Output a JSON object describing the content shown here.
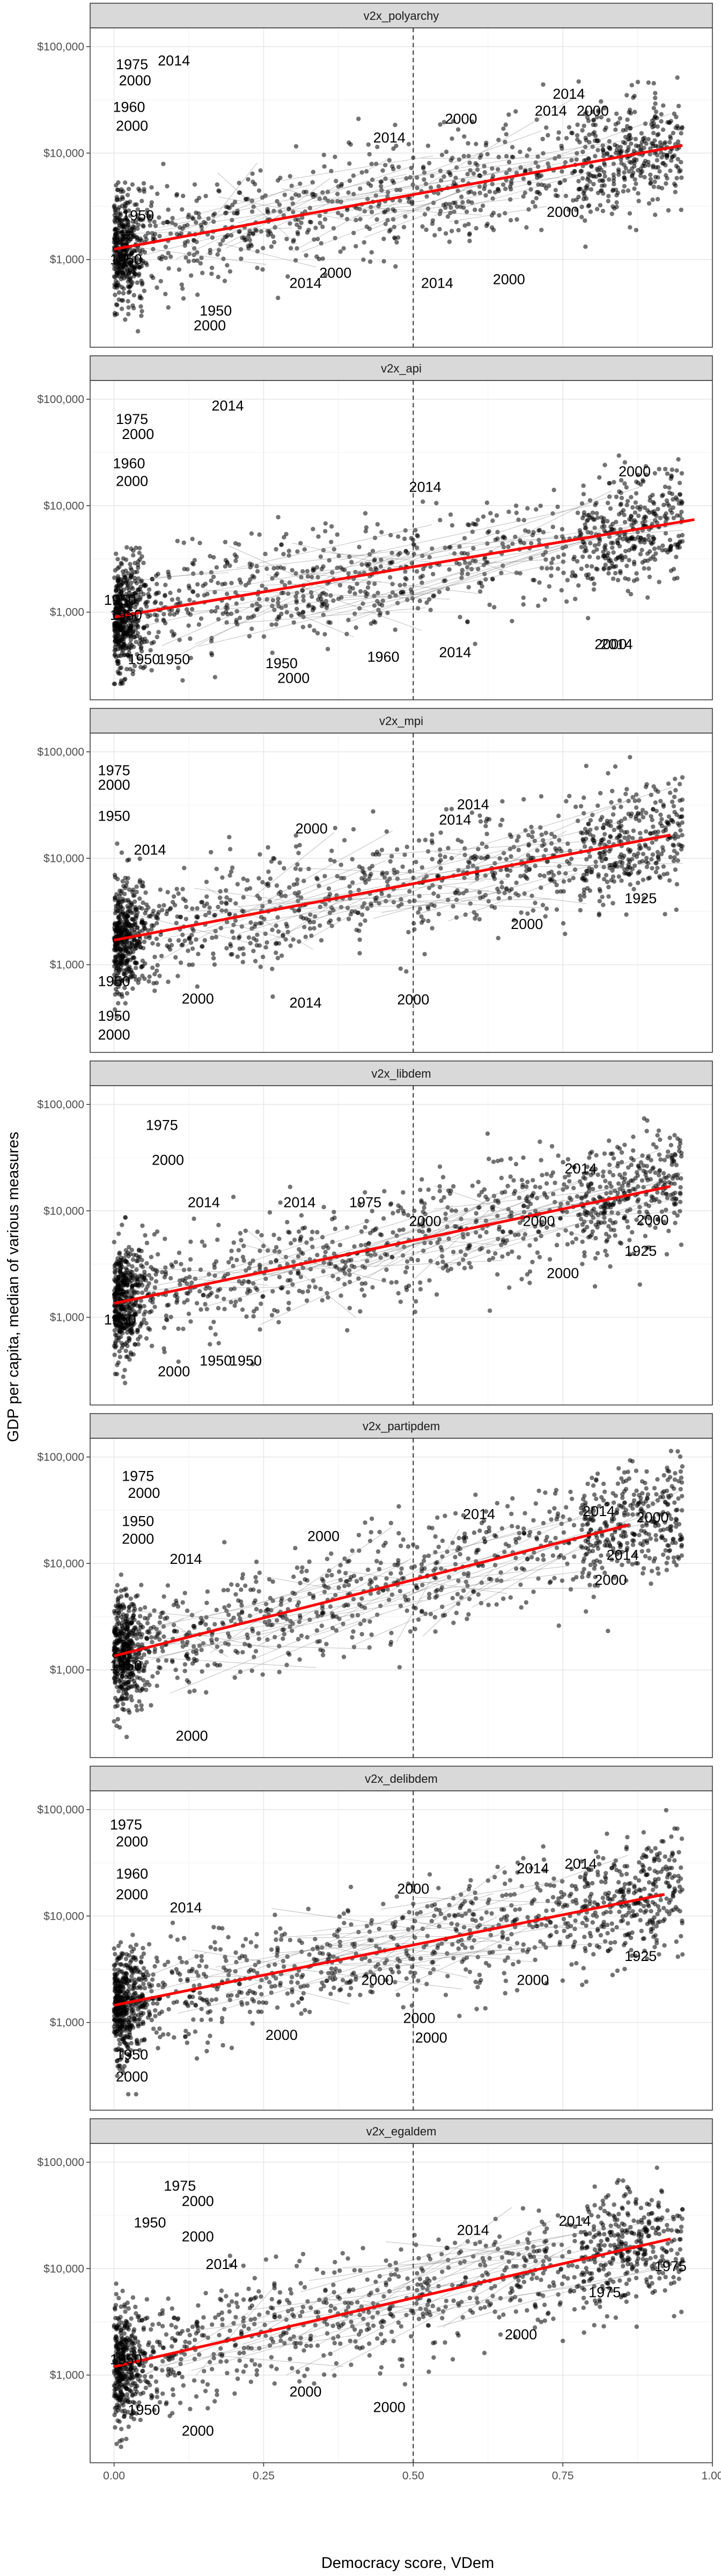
{
  "chart_data": {
    "type": "scatter",
    "xlabel": "Democracy score, VDem",
    "ylabel": "GDP per capita, median of various measures",
    "xlim": [
      -0.04,
      1.0
    ],
    "ylim": [
      150,
      150000
    ],
    "y_scale": "log",
    "x_ticks": [
      0.0,
      0.25,
      0.5,
      0.75,
      1.0
    ],
    "x_tick_labels": [
      "0.00",
      "0.25",
      "0.50",
      "0.75",
      "1.00"
    ],
    "y_ticks": [
      1000,
      10000,
      100000
    ],
    "y_tick_labels": [
      "$1,000",
      "$10,000",
      "$100,000"
    ],
    "vline_x": 0.5,
    "grid": true,
    "point_color": "#000000",
    "fit_color": "#ff0000",
    "panels": [
      {
        "name": "v2x_polyarchy",
        "fit": {
          "x": [
            0.0,
            0.95
          ],
          "y": [
            1250,
            11800
          ]
        },
        "labels": [
          {
            "text": "1975",
            "x": 0.03,
            "y": 68000
          },
          {
            "text": "2014",
            "x": 0.1,
            "y": 74000
          },
          {
            "text": "2000",
            "x": 0.035,
            "y": 48000
          },
          {
            "text": "1960",
            "x": 0.025,
            "y": 27000
          },
          {
            "text": "2000",
            "x": 0.03,
            "y": 18000
          },
          {
            "text": "2000",
            "x": 0.58,
            "y": 21000
          },
          {
            "text": "2014",
            "x": 0.76,
            "y": 36000
          },
          {
            "text": "2014",
            "x": 0.73,
            "y": 25000
          },
          {
            "text": "2000",
            "x": 0.8,
            "y": 25000
          },
          {
            "text": "2014",
            "x": 0.46,
            "y": 14000
          },
          {
            "text": "1950",
            "x": 0.04,
            "y": 2600
          },
          {
            "text": "1950",
            "x": 0.02,
            "y": 1000
          },
          {
            "text": "1950",
            "x": 0.17,
            "y": 330
          },
          {
            "text": "2000",
            "x": 0.16,
            "y": 240
          },
          {
            "text": "2000",
            "x": 0.37,
            "y": 750
          },
          {
            "text": "2014",
            "x": 0.32,
            "y": 600
          },
          {
            "text": "2014",
            "x": 0.54,
            "y": 600
          },
          {
            "text": "2000",
            "x": 0.66,
            "y": 650
          },
          {
            "text": "2000",
            "x": 0.75,
            "y": 2800
          }
        ]
      },
      {
        "name": "v2x_api",
        "fit": {
          "x": [
            0.0,
            0.97
          ],
          "y": [
            900,
            7400
          ]
        },
        "labels": [
          {
            "text": "1975",
            "x": 0.03,
            "y": 65000
          },
          {
            "text": "2014",
            "x": 0.19,
            "y": 87000
          },
          {
            "text": "2000",
            "x": 0.04,
            "y": 47000
          },
          {
            "text": "1960",
            "x": 0.025,
            "y": 25000
          },
          {
            "text": "2000",
            "x": 0.03,
            "y": 17000
          },
          {
            "text": "2000",
            "x": 0.87,
            "y": 21000
          },
          {
            "text": "2014",
            "x": 0.52,
            "y": 15000
          },
          {
            "text": "1950",
            "x": 0.01,
            "y": 1300
          },
          {
            "text": "1950",
            "x": 0.02,
            "y": 940
          },
          {
            "text": "1950",
            "x": 0.05,
            "y": 360
          },
          {
            "text": "1950",
            "x": 0.1,
            "y": 360
          },
          {
            "text": "1950",
            "x": 0.28,
            "y": 330
          },
          {
            "text": "2000",
            "x": 0.3,
            "y": 240
          },
          {
            "text": "1960",
            "x": 0.45,
            "y": 380
          },
          {
            "text": "2014",
            "x": 0.57,
            "y": 420
          },
          {
            "text": "2014",
            "x": 0.84,
            "y": 500
          },
          {
            "text": "2000",
            "x": 0.83,
            "y": 500
          }
        ]
      },
      {
        "name": "v2x_mpi",
        "fit": {
          "x": [
            0.0,
            0.93
          ],
          "y": [
            1700,
            16500
          ]
        },
        "labels": [
          {
            "text": "1975",
            "x": 0.0,
            "y": 67000
          },
          {
            "text": "2000",
            "x": 0.0,
            "y": 49000
          },
          {
            "text": "1950",
            "x": 0.0,
            "y": 25000
          },
          {
            "text": "2014",
            "x": 0.06,
            "y": 12000
          },
          {
            "text": "2000",
            "x": 0.33,
            "y": 19000
          },
          {
            "text": "2014",
            "x": 0.6,
            "y": 32000
          },
          {
            "text": "2014",
            "x": 0.57,
            "y": 23000
          },
          {
            "text": "1950",
            "x": 0.0,
            "y": 700
          },
          {
            "text": "1950",
            "x": 0.0,
            "y": 330
          },
          {
            "text": "2000",
            "x": 0.0,
            "y": 220
          },
          {
            "text": "2000",
            "x": 0.14,
            "y": 480
          },
          {
            "text": "2014",
            "x": 0.32,
            "y": 440
          },
          {
            "text": "2000",
            "x": 0.5,
            "y": 470
          },
          {
            "text": "2000",
            "x": 0.69,
            "y": 2400
          },
          {
            "text": "1925",
            "x": 0.88,
            "y": 4200
          }
        ]
      },
      {
        "name": "v2x_libdem",
        "fit": {
          "x": [
            0.0,
            0.93
          ],
          "y": [
            1350,
            17000
          ]
        },
        "labels": [
          {
            "text": "1975",
            "x": 0.08,
            "y": 64000
          },
          {
            "text": "2000",
            "x": 0.09,
            "y": 30000
          },
          {
            "text": "2014",
            "x": 0.15,
            "y": 12000
          },
          {
            "text": "2014",
            "x": 0.31,
            "y": 12000
          },
          {
            "text": "1975",
            "x": 0.42,
            "y": 12000
          },
          {
            "text": "2000",
            "x": 0.52,
            "y": 8000
          },
          {
            "text": "2000",
            "x": 0.71,
            "y": 8000
          },
          {
            "text": "2014",
            "x": 0.78,
            "y": 25000
          },
          {
            "text": "1950",
            "x": 0.01,
            "y": 950
          },
          {
            "text": "2000",
            "x": 0.1,
            "y": 310
          },
          {
            "text": "1950",
            "x": 0.17,
            "y": 390
          },
          {
            "text": "1950",
            "x": 0.22,
            "y": 390
          },
          {
            "text": "2000",
            "x": 0.75,
            "y": 2600
          },
          {
            "text": "1925",
            "x": 0.88,
            "y": 4200
          },
          {
            "text": "2000",
            "x": 0.9,
            "y": 8200
          }
        ]
      },
      {
        "name": "v2x_partipdem",
        "fit": {
          "x": [
            0.0,
            0.86
          ],
          "y": [
            1350,
            23000
          ]
        },
        "labels": [
          {
            "text": "1975",
            "x": 0.04,
            "y": 66000
          },
          {
            "text": "2000",
            "x": 0.05,
            "y": 46000
          },
          {
            "text": "1950",
            "x": 0.04,
            "y": 25000
          },
          {
            "text": "2000",
            "x": 0.04,
            "y": 17000
          },
          {
            "text": "2014",
            "x": 0.12,
            "y": 11000
          },
          {
            "text": "2000",
            "x": 0.35,
            "y": 18000
          },
          {
            "text": "2014",
            "x": 0.61,
            "y": 29000
          },
          {
            "text": "2014",
            "x": 0.81,
            "y": 31000
          },
          {
            "text": "2000",
            "x": 0.9,
            "y": 27000
          },
          {
            "text": "2014",
            "x": 0.85,
            "y": 12000
          },
          {
            "text": "2000",
            "x": 0.83,
            "y": 7000
          },
          {
            "text": "1950",
            "x": 0.02,
            "y": 1100
          },
          {
            "text": "2000",
            "x": 0.13,
            "y": 240
          }
        ]
      },
      {
        "name": "v2x_delibdem",
        "fit": {
          "x": [
            0.0,
            0.92
          ],
          "y": [
            1450,
            16000
          ]
        },
        "labels": [
          {
            "text": "1975",
            "x": 0.02,
            "y": 72000
          },
          {
            "text": "2000",
            "x": 0.03,
            "y": 50000
          },
          {
            "text": "1960",
            "x": 0.03,
            "y": 25000
          },
          {
            "text": "2000",
            "x": 0.03,
            "y": 16000
          },
          {
            "text": "2014",
            "x": 0.12,
            "y": 12000
          },
          {
            "text": "2000",
            "x": 0.5,
            "y": 18000
          },
          {
            "text": "2014",
            "x": 0.7,
            "y": 28000
          },
          {
            "text": "2014",
            "x": 0.78,
            "y": 31000
          },
          {
            "text": "2000",
            "x": 0.44,
            "y": 2500
          },
          {
            "text": "2000",
            "x": 0.28,
            "y": 760
          },
          {
            "text": "1950",
            "x": 0.03,
            "y": 500
          },
          {
            "text": "2000",
            "x": 0.03,
            "y": 310
          },
          {
            "text": "2000",
            "x": 0.51,
            "y": 1100
          },
          {
            "text": "2000",
            "x": 0.53,
            "y": 720
          },
          {
            "text": "2000",
            "x": 0.7,
            "y": 2500
          },
          {
            "text": "1925",
            "x": 0.88,
            "y": 4200
          }
        ]
      },
      {
        "name": "v2x_egaldem",
        "fit": {
          "x": [
            0.0,
            0.93
          ],
          "y": [
            1200,
            19000
          ]
        },
        "labels": [
          {
            "text": "1975",
            "x": 0.11,
            "y": 60000
          },
          {
            "text": "2000",
            "x": 0.14,
            "y": 43000
          },
          {
            "text": "1950",
            "x": 0.06,
            "y": 27000
          },
          {
            "text": "2000",
            "x": 0.14,
            "y": 20000
          },
          {
            "text": "2014",
            "x": 0.18,
            "y": 11000
          },
          {
            "text": "1950",
            "x": 0.02,
            "y": 1400
          },
          {
            "text": "1950",
            "x": 0.05,
            "y": 470
          },
          {
            "text": "2000",
            "x": 0.14,
            "y": 300
          },
          {
            "text": "2000",
            "x": 0.32,
            "y": 700
          },
          {
            "text": "2000",
            "x": 0.46,
            "y": 500
          },
          {
            "text": "2014",
            "x": 0.6,
            "y": 23000
          },
          {
            "text": "2014",
            "x": 0.77,
            "y": 28000
          },
          {
            "text": "2000",
            "x": 0.68,
            "y": 2400
          },
          {
            "text": "1975",
            "x": 0.82,
            "y": 6000
          },
          {
            "text": "1975",
            "x": 0.93,
            "y": 10500
          }
        ]
      }
    ]
  }
}
